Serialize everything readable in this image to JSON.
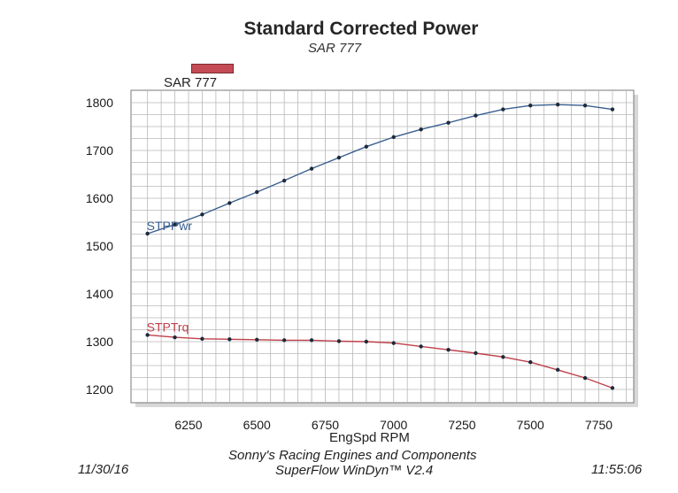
{
  "header": {
    "title": "Standard Corrected Power",
    "subtitle": "SAR 777"
  },
  "legend": {
    "label": "SAR 777",
    "swatch_color": "#c44b55"
  },
  "footer": {
    "company": "Sonny's Racing Engines and Components",
    "software": "SuperFlow WinDyn™ V2.4",
    "date": "11/30/16",
    "time": "11:55:06"
  },
  "chart_data": {
    "type": "line",
    "xlabel": "EngSpd  RPM",
    "ylabel": "",
    "xlim": [
      6050,
      7850
    ],
    "ylim": [
      1180,
      1805
    ],
    "x_ticks": [
      6250,
      6500,
      6750,
      7000,
      7250,
      7500,
      7750
    ],
    "y_ticks": [
      1200,
      1300,
      1400,
      1500,
      1600,
      1700,
      1800
    ],
    "grid": true,
    "x": [
      6100,
      6200,
      6300,
      6400,
      6500,
      6600,
      6700,
      6800,
      6900,
      7000,
      7100,
      7200,
      7300,
      7400,
      7500,
      7600,
      7700,
      7800
    ],
    "series": [
      {
        "name": "STPPwr",
        "color": "#3a5f8f",
        "values": [
          1526,
          1545,
          1566,
          1590,
          1613,
          1637,
          1662,
          1685,
          1708,
          1728,
          1744,
          1758,
          1773,
          1786,
          1794,
          1796,
          1794,
          1786
        ]
      },
      {
        "name": "STPTrq",
        "color": "#c0404a",
        "values": [
          1314,
          1309,
          1306,
          1305,
          1304,
          1303,
          1303,
          1301,
          1300,
          1297,
          1290,
          1283,
          1276,
          1268,
          1257,
          1241,
          1224,
          1203
        ]
      }
    ]
  }
}
